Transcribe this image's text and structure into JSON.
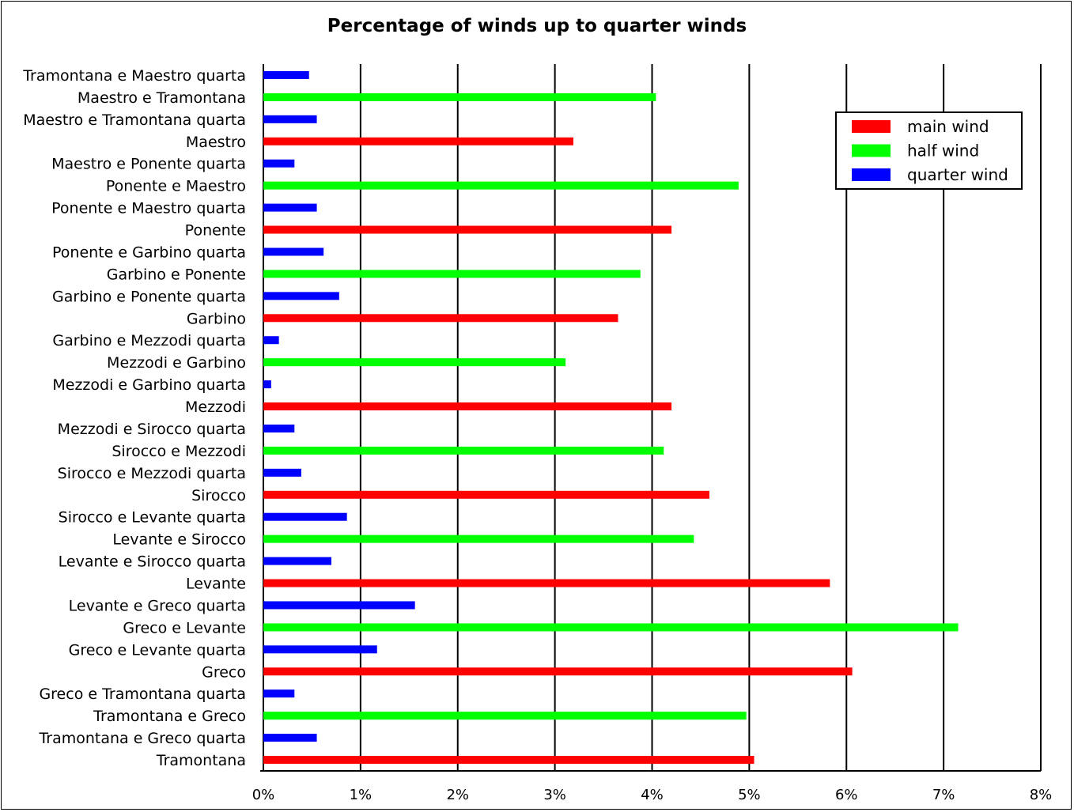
{
  "chart_data": {
    "type": "bar",
    "orientation": "horizontal",
    "title": "Percentage of winds up to quarter winds",
    "xlabel": "",
    "ylabel": "",
    "xlim": [
      0,
      8
    ],
    "xticks": [
      "0%",
      "1%",
      "2%",
      "3%",
      "4%",
      "5%",
      "6%",
      "7%",
      "8%"
    ],
    "grid": "vertical",
    "legend_position": "top-right",
    "legend": [
      {
        "name": "main wind",
        "color": "#ff0000"
      },
      {
        "name": "half wind",
        "color": "#00ff00"
      },
      {
        "name": "quarter wind",
        "color": "#0000ff"
      }
    ],
    "bars": [
      {
        "label": "Tramontana e Maestro quarta",
        "value": 0.47,
        "kind": "quarter wind"
      },
      {
        "label": "Maestro e Tramontana",
        "value": 4.04,
        "kind": "half wind"
      },
      {
        "label": "Maestro e Tramontana quarta",
        "value": 0.55,
        "kind": "quarter wind"
      },
      {
        "label": "Maestro",
        "value": 3.19,
        "kind": "main wind"
      },
      {
        "label": "Maestro e Ponente quarta",
        "value": 0.32,
        "kind": "quarter wind"
      },
      {
        "label": "Ponente e Maestro",
        "value": 4.89,
        "kind": "half wind"
      },
      {
        "label": "Ponente e Maestro quarta",
        "value": 0.55,
        "kind": "quarter wind"
      },
      {
        "label": "Ponente",
        "value": 4.2,
        "kind": "main wind"
      },
      {
        "label": "Ponente e Garbino quarta",
        "value": 0.62,
        "kind": "quarter wind"
      },
      {
        "label": "Garbino e Ponente",
        "value": 3.88,
        "kind": "half wind"
      },
      {
        "label": "Garbino e Ponente quarta",
        "value": 0.78,
        "kind": "quarter wind"
      },
      {
        "label": "Garbino",
        "value": 3.65,
        "kind": "main wind"
      },
      {
        "label": "Garbino e Mezzodi quarta",
        "value": 0.16,
        "kind": "quarter wind"
      },
      {
        "label": "Mezzodi e Garbino",
        "value": 3.11,
        "kind": "half wind"
      },
      {
        "label": "Mezzodi e Garbino quarta",
        "value": 0.08,
        "kind": "quarter wind"
      },
      {
        "label": "Mezzodi",
        "value": 4.2,
        "kind": "main wind"
      },
      {
        "label": "Mezzodi e Sirocco quarta",
        "value": 0.32,
        "kind": "quarter wind"
      },
      {
        "label": "Sirocco e Mezzodi",
        "value": 4.12,
        "kind": "half wind"
      },
      {
        "label": "Sirocco e Mezzodi quarta",
        "value": 0.39,
        "kind": "quarter wind"
      },
      {
        "label": "Sirocco",
        "value": 4.59,
        "kind": "main wind"
      },
      {
        "label": "Sirocco e Levante quarta",
        "value": 0.86,
        "kind": "quarter wind"
      },
      {
        "label": "Levante e Sirocco",
        "value": 4.43,
        "kind": "half wind"
      },
      {
        "label": "Levante e Sirocco quarta",
        "value": 0.7,
        "kind": "quarter wind"
      },
      {
        "label": "Levante",
        "value": 5.83,
        "kind": "main wind"
      },
      {
        "label": "Levante e Greco quarta",
        "value": 1.56,
        "kind": "quarter wind"
      },
      {
        "label": "Greco e Levante",
        "value": 7.15,
        "kind": "half wind"
      },
      {
        "label": "Greco e Levante quarta",
        "value": 1.17,
        "kind": "quarter wind"
      },
      {
        "label": "Greco",
        "value": 6.06,
        "kind": "main wind"
      },
      {
        "label": "Greco e Tramontana quarta",
        "value": 0.32,
        "kind": "quarter wind"
      },
      {
        "label": "Tramontana e Greco",
        "value": 4.97,
        "kind": "half wind"
      },
      {
        "label": "Tramontana e Greco  quarta",
        "value": 0.55,
        "kind": "quarter wind"
      },
      {
        "label": "Tramontana",
        "value": 5.05,
        "kind": "main wind"
      }
    ]
  }
}
